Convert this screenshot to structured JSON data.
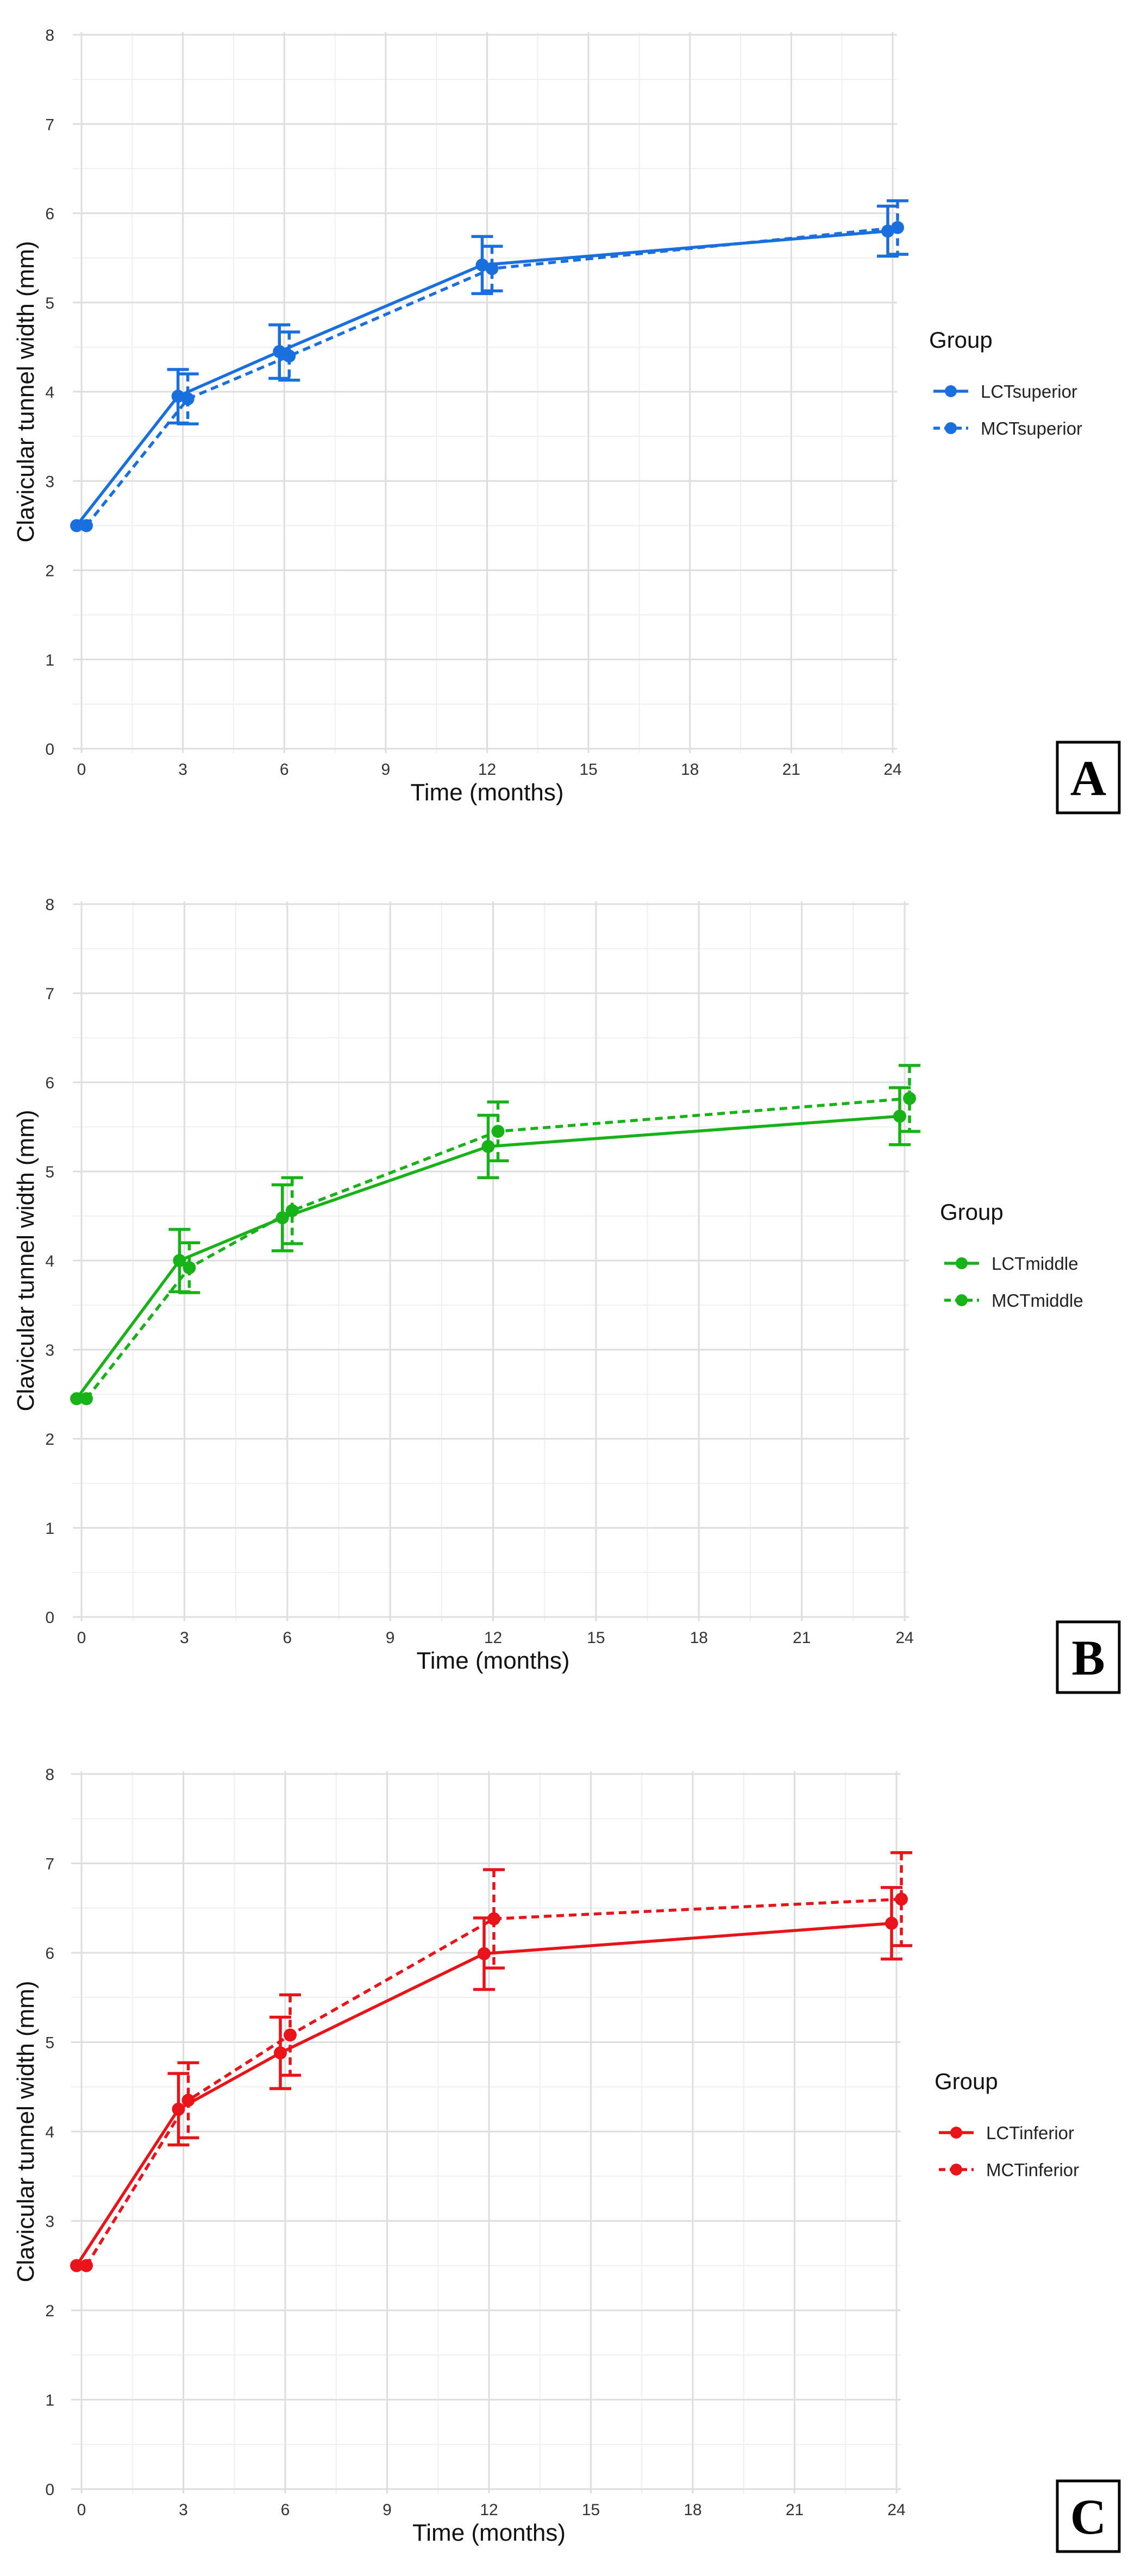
{
  "chart_data": [
    {
      "type": "line",
      "panel_label": "A",
      "xlabel": "Time (months)",
      "ylabel": "Clavicular tunnel width (mm)",
      "xlim": [
        0,
        24
      ],
      "ylim": [
        0,
        8
      ],
      "x_ticks": [
        0,
        3,
        6,
        9,
        12,
        15,
        18,
        21,
        24
      ],
      "y_ticks": [
        0,
        1,
        2,
        3,
        4,
        5,
        6,
        7,
        8
      ],
      "color": "#1a6fdf",
      "legend_title": "Group",
      "legend_position": "right",
      "series": [
        {
          "name": "LCTsuperior",
          "style": "solid",
          "x": [
            0,
            3,
            6,
            12,
            24
          ],
          "values": [
            2.5,
            3.95,
            4.45,
            5.42,
            5.8
          ],
          "err": [
            0,
            0.3,
            0.3,
            0.32,
            0.28
          ]
        },
        {
          "name": "MCTsuperior",
          "style": "dashed",
          "x": [
            0,
            3,
            6,
            12,
            24
          ],
          "values": [
            2.5,
            3.92,
            4.4,
            5.38,
            5.84
          ],
          "err": [
            0,
            0.28,
            0.27,
            0.25,
            0.3
          ]
        }
      ]
    },
    {
      "type": "line",
      "panel_label": "B",
      "xlabel": "Time (months)",
      "ylabel": "Clavicular tunnel width (mm)",
      "xlim": [
        0,
        24
      ],
      "ylim": [
        0,
        8
      ],
      "x_ticks": [
        0,
        3,
        6,
        9,
        12,
        15,
        18,
        21,
        24
      ],
      "y_ticks": [
        0,
        1,
        2,
        3,
        4,
        5,
        6,
        7,
        8
      ],
      "color": "#17b217",
      "legend_title": "Group",
      "legend_position": "right",
      "series": [
        {
          "name": "LCTmiddle",
          "style": "solid",
          "x": [
            0,
            3,
            6,
            12,
            24
          ],
          "values": [
            2.45,
            4.0,
            4.48,
            5.28,
            5.62
          ],
          "err": [
            0,
            0.35,
            0.37,
            0.35,
            0.32
          ]
        },
        {
          "name": "MCTmiddle",
          "style": "dashed",
          "x": [
            0,
            3,
            6,
            12,
            24
          ],
          "values": [
            2.45,
            3.92,
            4.56,
            5.45,
            5.82
          ],
          "err": [
            0,
            0.28,
            0.37,
            0.33,
            0.37
          ]
        }
      ]
    },
    {
      "type": "line",
      "panel_label": "C",
      "xlabel": "Time (months)",
      "ylabel": "Clavicular tunnel width (mm)",
      "xlim": [
        0,
        24
      ],
      "ylim": [
        0,
        8
      ],
      "x_ticks": [
        0,
        3,
        6,
        9,
        12,
        15,
        18,
        21,
        24
      ],
      "y_ticks": [
        0,
        1,
        2,
        3,
        4,
        5,
        6,
        7,
        8
      ],
      "color": "#e8141a",
      "legend_title": "Group",
      "legend_position": "right",
      "series": [
        {
          "name": "LCTinferior",
          "style": "solid",
          "x": [
            0,
            3,
            6,
            12,
            24
          ],
          "values": [
            2.5,
            4.25,
            4.88,
            5.99,
            6.33
          ],
          "err": [
            0,
            0.4,
            0.4,
            0.4,
            0.4
          ]
        },
        {
          "name": "MCTinferior",
          "style": "dashed",
          "x": [
            0,
            3,
            6,
            12,
            24
          ],
          "values": [
            2.5,
            4.35,
            5.08,
            6.38,
            6.6
          ],
          "err": [
            0,
            0.42,
            0.45,
            0.55,
            0.52
          ]
        }
      ]
    }
  ]
}
